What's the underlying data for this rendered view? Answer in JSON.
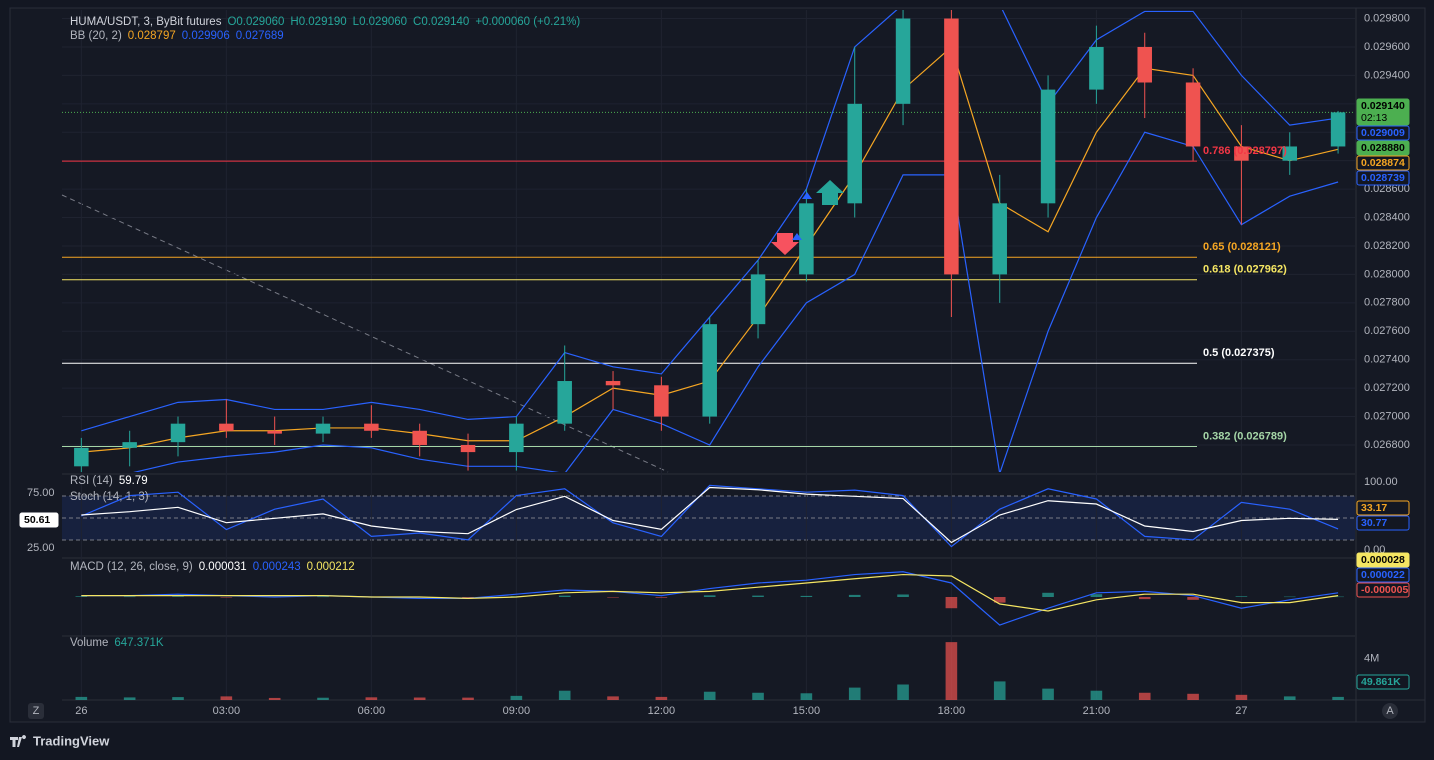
{
  "header": {
    "symbol": "HUMA/USDT, 3, ByBit futures",
    "open": "O0.029060",
    "high": "H0.029190",
    "low": "L0.029060",
    "close": "C0.029140",
    "change": "+0.000060 (+0.21%)"
  },
  "footer": {
    "brand": "TradingView",
    "left_button": "Z",
    "right_button": "A"
  },
  "chart_data": [
    {
      "type": "candlestick",
      "x": [
        0,
        1,
        2,
        3,
        4,
        5,
        6,
        7,
        8,
        9,
        10,
        11,
        12,
        13,
        14,
        15,
        16,
        17,
        18,
        19,
        20,
        21,
        22,
        23,
        24,
        25,
        26
      ],
      "open": [
        0.02665,
        0.02678,
        0.02682,
        0.02695,
        0.0269,
        0.02688,
        0.02695,
        0.0269,
        0.0268,
        0.02675,
        0.02695,
        0.02725,
        0.02722,
        0.027,
        0.02765,
        0.028,
        0.0285,
        0.0292,
        0.0298,
        0.028,
        0.0285,
        0.0293,
        0.0296,
        0.02935,
        0.0289,
        0.0288,
        0.0289
      ],
      "high": [
        0.02685,
        0.0269,
        0.027,
        0.02712,
        0.027,
        0.027,
        0.02708,
        0.02695,
        0.02688,
        0.027,
        0.0275,
        0.02732,
        0.02728,
        0.0277,
        0.0281,
        0.0286,
        0.0296,
        0.02986,
        0.02986,
        0.0287,
        0.0294,
        0.02975,
        0.0297,
        0.02945,
        0.02905,
        0.029,
        0.02915
      ],
      "low": [
        0.0266,
        0.02665,
        0.02672,
        0.02685,
        0.0268,
        0.02682,
        0.02685,
        0.02672,
        0.02662,
        0.02662,
        0.0269,
        0.02705,
        0.0269,
        0.02695,
        0.02755,
        0.02795,
        0.0284,
        0.02905,
        0.0277,
        0.0278,
        0.0284,
        0.0292,
        0.0291,
        0.0288,
        0.02835,
        0.0287,
        0.02885
      ],
      "close": [
        0.02678,
        0.02682,
        0.02695,
        0.0269,
        0.02688,
        0.02695,
        0.0269,
        0.0268,
        0.02675,
        0.02695,
        0.02725,
        0.02722,
        0.027,
        0.02765,
        0.028,
        0.0285,
        0.0292,
        0.0298,
        0.028,
        0.0285,
        0.0293,
        0.0296,
        0.02935,
        0.0289,
        0.0288,
        0.0289,
        0.02914
      ],
      "up_color": "#26a69a",
      "down_color": "#ef5350",
      "xlim": [
        -0.4,
        26.35
      ],
      "xticks": [
        {
          "value": 0,
          "label": "26"
        },
        {
          "value": 3,
          "label": "03:00"
        },
        {
          "value": 6,
          "label": "06:00"
        },
        {
          "value": 9,
          "label": "09:00"
        },
        {
          "value": 12,
          "label": "12:00"
        },
        {
          "value": 15,
          "label": "15:00"
        },
        {
          "value": 18,
          "label": "18:00"
        },
        {
          "value": 21,
          "label": "21:00"
        },
        {
          "value": 24,
          "label": "27"
        }
      ],
      "ylim": [
        0.02661,
        0.02986
      ],
      "yticks": [
        {
          "value": 0.0268,
          "label": "0.026800"
        },
        {
          "value": 0.027,
          "label": "0.027000"
        },
        {
          "value": 0.0272,
          "label": "0.027200"
        },
        {
          "value": 0.0274,
          "label": "0.027400"
        },
        {
          "value": 0.0276,
          "label": "0.027600"
        },
        {
          "value": 0.0278,
          "label": "0.027800"
        },
        {
          "value": 0.028,
          "label": "0.028000"
        },
        {
          "value": 0.0282,
          "label": "0.028200"
        },
        {
          "value": 0.0284,
          "label": "0.028400"
        },
        {
          "value": 0.0286,
          "label": "0.028600"
        },
        {
          "value": 0.0288,
          "label": "0.028800"
        },
        {
          "value": 0.029,
          "label": "0.029000"
        },
        {
          "value": 0.0292,
          "label": "0.029200"
        },
        {
          "value": 0.0294,
          "label": "0.029400"
        },
        {
          "value": 0.0296,
          "label": "0.029600"
        },
        {
          "value": 0.0298,
          "label": "0.029800"
        }
      ],
      "grid": true,
      "series": [
        {
          "color": "#f5a623",
          "values": [
            0.02675,
            0.02678,
            0.02685,
            0.0269,
            0.0269,
            0.02692,
            0.02692,
            0.02688,
            0.02683,
            0.02683,
            0.027,
            0.0272,
            0.02715,
            0.02725,
            0.0277,
            0.0282,
            0.0287,
            0.0293,
            0.0296,
            0.0285,
            0.0283,
            0.029,
            0.02945,
            0.0294,
            0.0289,
            0.0288,
            0.02888
          ]
        },
        {
          "color": "#2962ff",
          "values": [
            0.0269,
            0.027,
            0.0271,
            0.02712,
            0.02705,
            0.02705,
            0.0271,
            0.02705,
            0.02698,
            0.027,
            0.02745,
            0.02735,
            0.0273,
            0.0277,
            0.0281,
            0.0286,
            0.0296,
            0.0299,
            0.0299,
            0.0299,
            0.0292,
            0.02965,
            0.02985,
            0.02985,
            0.0294,
            0.02905,
            0.0291
          ]
        },
        {
          "color": "#2962ff",
          "values": [
            0.0266,
            0.0266,
            0.02668,
            0.02672,
            0.02675,
            0.0268,
            0.02678,
            0.0267,
            0.02665,
            0.02665,
            0.0266,
            0.02705,
            0.02695,
            0.0268,
            0.02735,
            0.0278,
            0.028,
            0.0287,
            0.0287,
            0.0266,
            0.0276,
            0.0284,
            0.029,
            0.0289,
            0.02835,
            0.02855,
            0.02865
          ]
        }
      ],
      "legend": [
        {
          "name": "BB (20, 2)",
          "readouts": [
            {
              "text": "0.028797",
              "color": "#f5a623"
            },
            {
              "text": "0.029906",
              "color": "#2962ff"
            },
            {
              "text": "0.027689",
              "color": "#2962ff"
            }
          ]
        }
      ],
      "levels": [
        {
          "label": "0.786 (0.028797)",
          "value": 0.028797,
          "color": "#f23645"
        },
        {
          "label": "0.65 (0.028121)",
          "value": 0.028121,
          "color": "#f5a623"
        },
        {
          "label": "0.618 (0.027962)",
          "value": 0.027962,
          "color": "#f5e663"
        },
        {
          "label": "0.5 (0.027375)",
          "value": 0.027375,
          "color": "#ffffff"
        },
        {
          "label": "0.382 (0.026789)",
          "value": 0.026789,
          "color": "#a5d6a7"
        }
      ],
      "price_line": {
        "value": 0.02914,
        "color": "#4caf50"
      },
      "countdown": "02:13",
      "badges": [
        {
          "label": "0.029140",
          "color": "#4caf50",
          "solid": true
        },
        {
          "label": "0.029009",
          "color": "#2962ff"
        },
        {
          "label": "0.028880",
          "color": "#4caf50",
          "solid": true
        },
        {
          "label": "0.028874",
          "color": "#f5a623"
        },
        {
          "label": "0.028739",
          "color": "#2962ff"
        }
      ]
    },
    {
      "type": "line",
      "x": [
        0,
        1,
        2,
        3,
        4,
        5,
        6,
        7,
        8,
        9,
        10,
        11,
        12,
        13,
        14,
        15,
        16,
        17,
        18,
        19,
        20,
        21,
        22,
        23,
        24,
        25,
        26
      ],
      "xlim": [
        -0.4,
        26.35
      ],
      "ylim": [
        17.7,
        90.5
      ],
      "yticks": [
        {
          "value": 75,
          "label": "75.00"
        },
        {
          "value": 25,
          "label": "25.00"
        }
      ],
      "y2lim": [
        -8.8,
        108.8
      ],
      "y2ticks": [
        {
          "value": 100,
          "label": "100.00"
        },
        {
          "value": 0,
          "label": "0.00"
        }
      ],
      "series": [
        {
          "name": "Stoch (14, 1, 3)",
          "color": "#2962ff",
          "axis": "y2",
          "values": [
            50,
            80,
            85,
            30,
            60,
            75,
            20,
            25,
            15,
            80,
            90,
            40,
            20,
            95,
            90,
            85,
            88,
            80,
            5,
            60,
            90,
            75,
            20,
            15,
            70,
            60,
            31
          ]
        },
        {
          "name": "RSI (14)",
          "color": "#ffffff",
          "values": [
            55,
            58,
            62,
            48,
            52,
            56,
            45,
            40,
            38,
            60,
            72,
            50,
            42,
            80,
            78,
            74,
            72,
            70,
            30,
            55,
            68,
            65,
            45,
            40,
            50,
            52,
            51
          ]
        }
      ],
      "legend": [
        {
          "name": "RSI (14)",
          "readouts": [
            {
              "text": "59.79",
              "color": "#ffffff"
            }
          ]
        },
        {
          "name": "Stoch (14, 1, 3)",
          "readouts": []
        }
      ],
      "badges": [
        {
          "label": "50.61",
          "color": "#ffffff",
          "solid": true,
          "side": "left"
        },
        {
          "label": "33.17",
          "color": "#f5a623"
        },
        {
          "label": "30.77",
          "color": "#2962ff"
        }
      ]
    },
    {
      "type": "bar",
      "x": [
        0,
        1,
        2,
        3,
        4,
        5,
        6,
        7,
        8,
        9,
        10,
        11,
        12,
        13,
        14,
        15,
        16,
        17,
        18,
        19,
        20,
        21,
        22,
        23,
        24,
        25,
        26
      ],
      "xlim": [
        -0.4,
        26.35
      ],
      "ylim": [
        -0.000264,
        0.000264
      ],
      "values": [
        5e-06,
        3e-06,
        4e-06,
        -2e-06,
        0,
        3e-06,
        -3e-06,
        -4e-06,
        -3e-06,
        6e-06,
        1e-05,
        -2e-06,
        -5e-06,
        1.2e-05,
        1e-05,
        8e-06,
        1.5e-05,
        1.8e-05,
        -8e-05,
        -4e-05,
        3e-05,
        2e-05,
        -1.5e-05,
        -2e-05,
        5e-06,
        3e-06,
        3e-06
      ],
      "colors": [
        "#26a69a",
        "#ef5350"
      ],
      "series": [
        {
          "color": "#2962ff",
          "values": [
            1e-05,
            1e-05,
            2e-05,
            1e-05,
            0,
            1e-05,
            0,
            -1e-05,
            -1e-05,
            2e-05,
            5e-05,
            4e-05,
            1e-05,
            6e-05,
            0.0001,
            0.00012,
            0.00016,
            0.00018,
            0.0001,
            -0.0002,
            -8e-05,
            3e-05,
            4e-05,
            1e-05,
            -8e-05,
            -2e-05,
            3e-05
          ]
        },
        {
          "color": "#f5e663",
          "values": [
            1e-05,
            1e-05,
            1e-05,
            1e-05,
            1e-05,
            1e-05,
            0,
            0,
            -1e-05,
            0,
            3e-05,
            4e-05,
            3e-05,
            4e-05,
            7e-05,
            0.0001,
            0.00013,
            0.00016,
            0.00015,
            -5e-05,
            -0.0001,
            -2e-05,
            2e-05,
            2e-05,
            -4e-05,
            -4e-05,
            1e-05
          ]
        }
      ],
      "legend": [
        {
          "name": "MACD (12, 26, close, 9)",
          "readouts": [
            {
              "text": "0.000031",
              "color": "#ffffff"
            },
            {
              "text": "0.000243",
              "color": "#2962ff"
            },
            {
              "text": "0.000212",
              "color": "#f5e663"
            }
          ]
        }
      ],
      "badges": [
        {
          "label": "0.000028",
          "color": "#f5e663",
          "solid": true
        },
        {
          "label": "0.000022",
          "color": "#2962ff"
        },
        {
          "label": "-0.000005",
          "color": "#ef5350"
        }
      ]
    },
    {
      "type": "bar",
      "x": [
        0,
        1,
        2,
        3,
        4,
        5,
        6,
        7,
        8,
        9,
        10,
        11,
        12,
        13,
        14,
        15,
        16,
        17,
        18,
        19,
        20,
        21,
        22,
        23,
        24,
        25,
        26
      ],
      "xlim": [
        -0.4,
        26.35
      ],
      "ylim": [
        0,
        6000000
      ],
      "yticks": [
        {
          "value": 4000000,
          "label": "4M"
        }
      ],
      "values": [
        300000,
        250000,
        280000,
        350000,
        200000,
        220000,
        260000,
        240000,
        230000,
        400000,
        900000,
        350000,
        300000,
        800000,
        700000,
        650000,
        1200000,
        1500000,
        5600000,
        1800000,
        1100000,
        900000,
        700000,
        600000,
        500000,
        350000,
        300000
      ],
      "colors": [
        "#26a69a",
        "#ef5350"
      ],
      "legend": [
        {
          "name": "Volume",
          "readouts": [
            {
              "text": "647.371K",
              "color": "#26a69a"
            }
          ]
        }
      ],
      "badges": [
        {
          "label": "49.861K",
          "color": "#26a69a"
        }
      ]
    }
  ]
}
